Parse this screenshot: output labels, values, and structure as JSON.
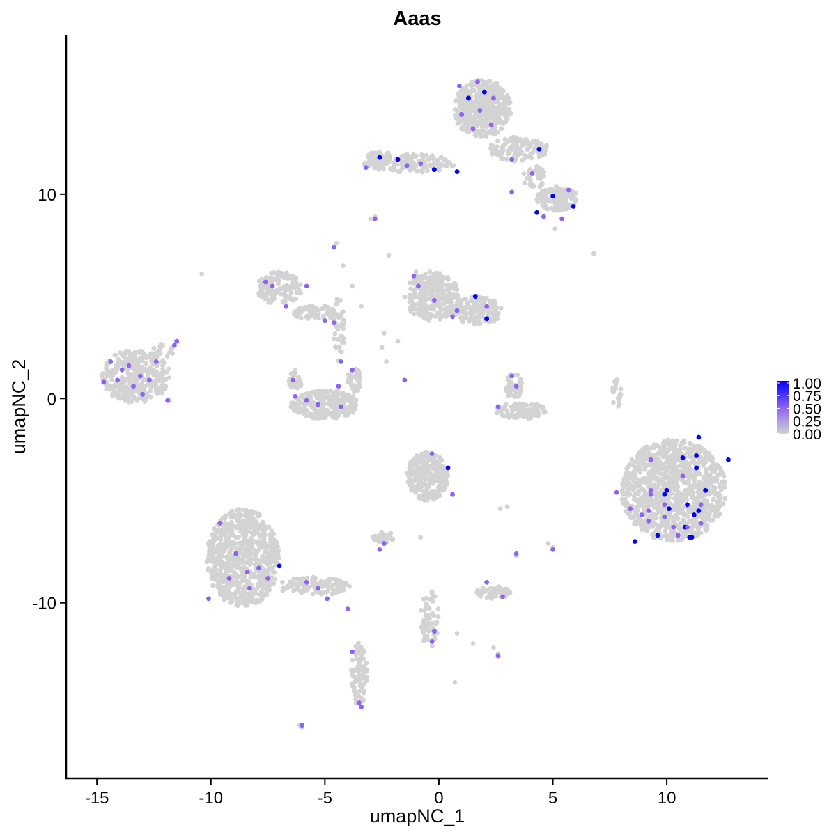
{
  "chart_data": {
    "type": "scatter",
    "title": "Aaas",
    "xlabel": "umapNC_1",
    "ylabel": "umapNC_2",
    "xlim": [
      -16.35,
      14.46
    ],
    "ylim": [
      -18.6,
      17.8
    ],
    "xticks": [
      -15,
      -10,
      -5,
      0,
      5,
      10
    ],
    "yticks": [
      -10,
      0,
      10
    ],
    "grid": false,
    "legend": {
      "placement": "right",
      "type": "colorbar",
      "ticks": [
        "1.00",
        "0.75",
        "0.50",
        "0.25",
        "0.00"
      ],
      "range": [
        0,
        1
      ]
    },
    "colors": {
      "low": "#D3D3D3",
      "mid": "#8E63F2",
      "high": "#0000FF"
    },
    "background_cell_groups": [
      {
        "center": [
          -13.3,
          1.1
        ],
        "spread": [
          1.5,
          1.3
        ],
        "n": 350
      },
      {
        "center": [
          -12.1,
          2.2
        ],
        "spread": [
          0.6,
          0.5
        ],
        "n": 20
      },
      {
        "center": [
          1.9,
          14.2
        ],
        "spread": [
          1.3,
          1.4
        ],
        "n": 450
      },
      {
        "center": [
          3.5,
          12.2
        ],
        "spread": [
          1.3,
          0.6
        ],
        "n": 120
      },
      {
        "center": [
          4.2,
          10.8
        ],
        "spread": [
          0.5,
          0.6
        ],
        "n": 40
      },
      {
        "center": [
          5.2,
          9.8
        ],
        "spread": [
          0.9,
          0.6
        ],
        "n": 120
      },
      {
        "center": [
          -1.3,
          11.5
        ],
        "spread": [
          2.0,
          0.45
        ],
        "n": 120
      },
      {
        "center": [
          -2.6,
          11.8
        ],
        "spread": [
          0.5,
          0.4
        ],
        "n": 60
      },
      {
        "center": [
          -7.0,
          5.4
        ],
        "spread": [
          1.0,
          0.8
        ],
        "n": 150
      },
      {
        "center": [
          -5.4,
          4.2
        ],
        "spread": [
          1.0,
          0.35
        ],
        "n": 60
      },
      {
        "center": [
          -4.4,
          3.4
        ],
        "spread": [
          0.25,
          1.6
        ],
        "n": 40
      },
      {
        "center": [
          -5.0,
          -0.3
        ],
        "spread": [
          1.5,
          0.7
        ],
        "n": 250
      },
      {
        "center": [
          -6.3,
          0.9
        ],
        "spread": [
          0.3,
          0.5
        ],
        "n": 30
      },
      {
        "center": [
          -3.7,
          0.9
        ],
        "spread": [
          0.3,
          0.6
        ],
        "n": 40
      },
      {
        "center": [
          -0.3,
          5.0
        ],
        "spread": [
          1.2,
          1.2
        ],
        "n": 300
      },
      {
        "center": [
          1.7,
          4.3
        ],
        "spread": [
          1.1,
          0.7
        ],
        "n": 150
      },
      {
        "center": [
          3.6,
          -0.6
        ],
        "spread": [
          1.1,
          0.4
        ],
        "n": 120
      },
      {
        "center": [
          3.3,
          0.6
        ],
        "spread": [
          0.35,
          0.7
        ],
        "n": 40
      },
      {
        "center": [
          10.3,
          -4.5
        ],
        "spread": [
          2.3,
          2.5
        ],
        "n": 1000
      },
      {
        "center": [
          -8.6,
          -7.8
        ],
        "spread": [
          1.6,
          2.4
        ],
        "n": 700
      },
      {
        "center": [
          -5.5,
          -9.2
        ],
        "spread": [
          1.6,
          0.45
        ],
        "n": 100
      },
      {
        "center": [
          -0.5,
          -3.8
        ],
        "spread": [
          0.9,
          1.2
        ],
        "n": 250
      },
      {
        "center": [
          -2.4,
          -6.8
        ],
        "spread": [
          0.5,
          0.3
        ],
        "n": 30
      },
      {
        "center": [
          2.4,
          -9.5
        ],
        "spread": [
          0.8,
          0.3
        ],
        "n": 60
      },
      {
        "center": [
          -0.4,
          -10.8
        ],
        "spread": [
          0.4,
          1.4
        ],
        "n": 60
      },
      {
        "center": [
          -3.5,
          -13.5
        ],
        "spread": [
          0.35,
          1.6
        ],
        "n": 80
      },
      {
        "center": [
          7.8,
          0.3
        ],
        "spread": [
          0.2,
          0.8
        ],
        "n": 20
      }
    ],
    "background_cells": [
      [
        -10.4,
        6.1
      ],
      [
        6.8,
        7.1
      ],
      [
        -4.5,
        7.6
      ],
      [
        -4.2,
        6.5
      ],
      [
        -3.8,
        5.5
      ],
      [
        -3.4,
        4.5
      ],
      [
        -2.5,
        2.5
      ],
      [
        -2.3,
        1.8
      ],
      [
        -1.8,
        2.8
      ],
      [
        -2.4,
        3.2
      ],
      [
        -6.0,
        -16.1
      ],
      [
        -6.1,
        -16.0
      ],
      [
        0.7,
        -13.9
      ],
      [
        2.6,
        -12.5
      ],
      [
        2.4,
        -12.2
      ],
      [
        1.5,
        -12.0
      ],
      [
        0.8,
        -11.5
      ],
      [
        5.0,
        -7.3
      ],
      [
        4.8,
        -7.1
      ],
      [
        3.4,
        -7.7
      ],
      [
        -0.8,
        -6.8
      ],
      [
        2.7,
        -5.4
      ],
      [
        3.0,
        -5.3
      ],
      [
        5.1,
        9.2
      ],
      [
        5.1,
        8.3
      ],
      [
        -3.0,
        8.8
      ],
      [
        -2.8,
        8.9
      ],
      [
        -1.0,
        6.2
      ],
      [
        -2.2,
        7.0
      ],
      [
        -11.8,
        -0.1
      ]
    ],
    "expressed_cells": [
      [
        11.4,
        -1.9,
        1
      ],
      [
        10.7,
        -2.9,
        1
      ],
      [
        11.3,
        -2.8,
        1
      ],
      [
        11.3,
        -3.4,
        1
      ],
      [
        12.7,
        -3.0,
        1
      ],
      [
        10.0,
        -4.5,
        1
      ],
      [
        9.9,
        -4.7,
        1
      ],
      [
        11.7,
        -4.5,
        1
      ],
      [
        10.9,
        -5.2,
        1
      ],
      [
        10.1,
        -5.4,
        1
      ],
      [
        11.2,
        -5.7,
        1
      ],
      [
        11.4,
        -5.5,
        1
      ],
      [
        10.8,
        -6.3,
        1
      ],
      [
        9.6,
        -6.7,
        1
      ],
      [
        8.6,
        -7.0,
        1
      ],
      [
        11.0,
        -6.8,
        1
      ],
      [
        11.1,
        -6.8,
        1
      ],
      [
        9.3,
        -3.0,
        0.5
      ],
      [
        10.7,
        -3.8,
        0.5
      ],
      [
        7.8,
        -4.6,
        0.5
      ],
      [
        9.3,
        -4.5,
        0.5
      ],
      [
        9.3,
        -4.7,
        0.5
      ],
      [
        9.9,
        -5.2,
        0.5
      ],
      [
        11.5,
        -5.2,
        0.5
      ],
      [
        8.4,
        -5.4,
        0.5
      ],
      [
        9.2,
        -5.5,
        0.5
      ],
      [
        8.9,
        -5.7,
        0.5
      ],
      [
        9.9,
        -5.8,
        0.5
      ],
      [
        9.2,
        -6.0,
        0.5
      ],
      [
        11.5,
        -6.1,
        0.5
      ],
      [
        10.3,
        -6.3,
        0.5
      ],
      [
        10.9,
        -6.3,
        0.5
      ],
      [
        10.5,
        -6.7,
        0.5
      ],
      [
        1.3,
        14.7,
        1
      ],
      [
        2.0,
        15.0,
        1
      ],
      [
        4.4,
        12.2,
        1
      ],
      [
        5.0,
        9.9,
        1
      ],
      [
        5.9,
        9.4,
        1
      ],
      [
        4.3,
        9.1,
        1
      ],
      [
        -2.6,
        11.8,
        1
      ],
      [
        -1.8,
        11.7,
        1
      ],
      [
        -0.2,
        11.2,
        1
      ],
      [
        0.8,
        11.1,
        1
      ],
      [
        1.6,
        5.0,
        1
      ],
      [
        2.1,
        3.9,
        1
      ],
      [
        0.4,
        -3.4,
        1
      ],
      [
        -7.0,
        -8.2,
        1
      ],
      [
        0.9,
        15.3,
        0.5
      ],
      [
        1.7,
        15.5,
        0.5
      ],
      [
        2.4,
        14.7,
        0.5
      ],
      [
        1.0,
        13.9,
        0.5
      ],
      [
        1.8,
        14.1,
        0.5
      ],
      [
        2.3,
        13.4,
        0.5
      ],
      [
        1.5,
        13.2,
        0.5
      ],
      [
        3.2,
        11.7,
        0.5
      ],
      [
        4.1,
        11.0,
        0.5
      ],
      [
        3.2,
        10.1,
        0.5
      ],
      [
        5.7,
        10.2,
        0.5
      ],
      [
        5.4,
        8.8,
        0.5
      ],
      [
        4.6,
        8.9,
        0.5
      ],
      [
        -3.2,
        11.3,
        0.5
      ],
      [
        -1.4,
        11.4,
        0.5
      ],
      [
        -0.8,
        11.5,
        0.5
      ],
      [
        -2.8,
        8.8,
        0.5
      ],
      [
        -4.6,
        7.4,
        0.5
      ],
      [
        -7.3,
        5.5,
        0.5
      ],
      [
        -7.6,
        5.7,
        0.5
      ],
      [
        -5.8,
        5.5,
        0.5
      ],
      [
        -6.7,
        4.5,
        0.5
      ],
      [
        -5.0,
        3.8,
        0.5
      ],
      [
        -4.6,
        3.7,
        0.5
      ],
      [
        -1.1,
        6.0,
        0.5
      ],
      [
        -0.9,
        5.5,
        0.5
      ],
      [
        -0.2,
        4.8,
        0.5
      ],
      [
        0.8,
        4.3,
        0.5
      ],
      [
        0.6,
        4.0,
        0.5
      ],
      [
        2.1,
        4.5,
        0.5
      ],
      [
        -4.3,
        1.8,
        0.5
      ],
      [
        -3.8,
        1.4,
        0.5
      ],
      [
        -6.4,
        0.9,
        0.5
      ],
      [
        -6.3,
        0.1,
        0.5
      ],
      [
        -5.8,
        -0.1,
        0.5
      ],
      [
        -5.3,
        -0.3,
        0.5
      ],
      [
        -4.4,
        0.6,
        0.5
      ],
      [
        -4.3,
        -0.4,
        0.5
      ],
      [
        3.2,
        1.1,
        0.5
      ],
      [
        3.4,
        0.6,
        0.5
      ],
      [
        2.6,
        -0.4,
        0.5
      ],
      [
        -1.5,
        0.9,
        0.5
      ],
      [
        -11.6,
        2.6,
        0.5
      ],
      [
        -11.5,
        2.8,
        0.5
      ],
      [
        -14.4,
        1.8,
        0.5
      ],
      [
        -13.9,
        1.4,
        0.5
      ],
      [
        -13.6,
        1.6,
        0.5
      ],
      [
        -13.1,
        1.1,
        0.5
      ],
      [
        -12.7,
        0.9,
        0.5
      ],
      [
        -12.4,
        1.8,
        0.5
      ],
      [
        -14.1,
        0.9,
        0.5
      ],
      [
        -14.7,
        0.8,
        0.5
      ],
      [
        -13.4,
        0.6,
        0.5
      ],
      [
        -13.0,
        0.2,
        0.5
      ],
      [
        -11.9,
        -0.1,
        0.5
      ],
      [
        -9.6,
        -6.1,
        0.5
      ],
      [
        -8.9,
        -7.6,
        0.5
      ],
      [
        -8.4,
        -8.5,
        0.5
      ],
      [
        -7.9,
        -8.3,
        0.5
      ],
      [
        -9.2,
        -8.8,
        0.5
      ],
      [
        -10.1,
        -9.8,
        0.5
      ],
      [
        -7.5,
        -8.8,
        0.5
      ],
      [
        -8.3,
        -9.3,
        0.5
      ],
      [
        -5.8,
        -9.0,
        0.5
      ],
      [
        -5.3,
        -9.3,
        0.5
      ],
      [
        -4.9,
        -9.8,
        0.5
      ],
      [
        -4.0,
        -10.3,
        0.5
      ],
      [
        -3.8,
        -12.4,
        0.5
      ],
      [
        -3.5,
        -14.9,
        0.5
      ],
      [
        -3.4,
        -15.1,
        0.5
      ],
      [
        -6.0,
        -16.0,
        0.5
      ],
      [
        -2.4,
        -7.1,
        0.5
      ],
      [
        -2.6,
        -7.4,
        0.5
      ],
      [
        -0.3,
        -2.7,
        0.5
      ],
      [
        0.6,
        -4.7,
        0.5
      ],
      [
        2.1,
        -9.0,
        0.5
      ],
      [
        2.8,
        -9.7,
        0.5
      ],
      [
        -0.2,
        -11.4,
        0.5
      ],
      [
        -0.3,
        -11.9,
        0.5
      ],
      [
        2.6,
        -12.6,
        0.5
      ],
      [
        3.4,
        -7.6,
        0.5
      ],
      [
        5.0,
        -7.4,
        0.5
      ]
    ]
  }
}
